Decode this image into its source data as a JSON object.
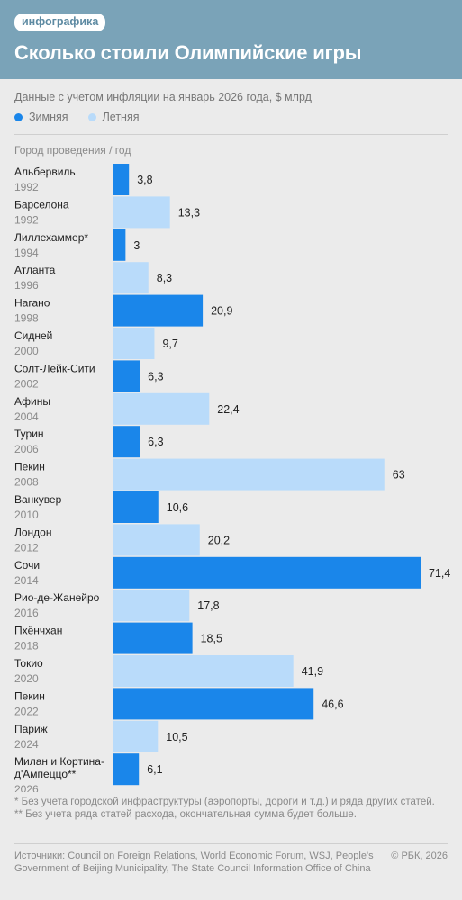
{
  "header": {
    "tag": "инфографика",
    "title": "Сколько стоили Олимпийские игры"
  },
  "subtitle": "Данные с учетом инфляции на январь 2026 года, $ млрд",
  "legend": {
    "winter": "Зимняя",
    "summer": "Летняя"
  },
  "colors": {
    "winter": "#1a86ea",
    "summer": "#b9dbfa",
    "header_bg": "#7aa3b8"
  },
  "column_header": "Город проведения / год",
  "chart_data": {
    "type": "bar",
    "orientation": "horizontal",
    "categories": [
      {
        "city": "Альбервиль",
        "year": "1992",
        "type": "winter"
      },
      {
        "city": "Барселона",
        "year": "1992",
        "type": "summer"
      },
      {
        "city": "Лиллехаммер*",
        "year": "1994",
        "type": "winter"
      },
      {
        "city": "Атланта",
        "year": "1996",
        "type": "summer"
      },
      {
        "city": "Нагано",
        "year": "1998",
        "type": "winter"
      },
      {
        "city": "Сидней",
        "year": "2000",
        "type": "summer"
      },
      {
        "city": "Солт-Лейк-Сити",
        "year": "2002",
        "type": "winter"
      },
      {
        "city": "Афины",
        "year": "2004",
        "type": "summer"
      },
      {
        "city": "Турин",
        "year": "2006",
        "type": "winter"
      },
      {
        "city": "Пекин",
        "year": "2008",
        "type": "summer"
      },
      {
        "city": "Ванкувер",
        "year": "2010",
        "type": "winter"
      },
      {
        "city": "Лондон",
        "year": "2012",
        "type": "summer"
      },
      {
        "city": "Сочи",
        "year": "2014",
        "type": "winter"
      },
      {
        "city": "Рио-де-Жанейро",
        "year": "2016",
        "type": "summer"
      },
      {
        "city": "Пхёнчхан",
        "year": "2018",
        "type": "winter"
      },
      {
        "city": "Токио",
        "year": "2020",
        "type": "summer"
      },
      {
        "city": "Пекин",
        "year": "2022",
        "type": "winter"
      },
      {
        "city": "Париж",
        "year": "2024",
        "type": "summer"
      },
      {
        "city": "Милан и Кортина-д'Ампеццо**",
        "year": "2026",
        "type": "winter"
      }
    ],
    "values": [
      3.8,
      13.3,
      3,
      8.3,
      20.9,
      9.7,
      6.3,
      22.4,
      6.3,
      63,
      10.6,
      20.2,
      71.4,
      17.8,
      18.5,
      41.9,
      46.6,
      10.5,
      6.1
    ],
    "value_labels": [
      "3,8",
      "13,3",
      "3",
      "8,3",
      "20,9",
      "9,7",
      "6,3",
      "22,4",
      "6,3",
      "63",
      "10,6",
      "20,2",
      "71,4",
      "17,8",
      "18,5",
      "41,9",
      "46,6",
      "10,5",
      "6,1"
    ],
    "xlim": [
      0,
      71.4
    ]
  },
  "footnotes": {
    "note1": "* Без учета городской инфраструктуры (аэропорты, дороги и т.д.) и ряда других статей.",
    "note2": "** Без учета ряда статей расхода, окончательная сумма будет больше."
  },
  "sources": "Источники: Council on Foreign Relations, World Economic Forum, WSJ, People's Government of Beijing Municipality, The State Council Information Office of China",
  "copyright": "© РБК, 2026"
}
